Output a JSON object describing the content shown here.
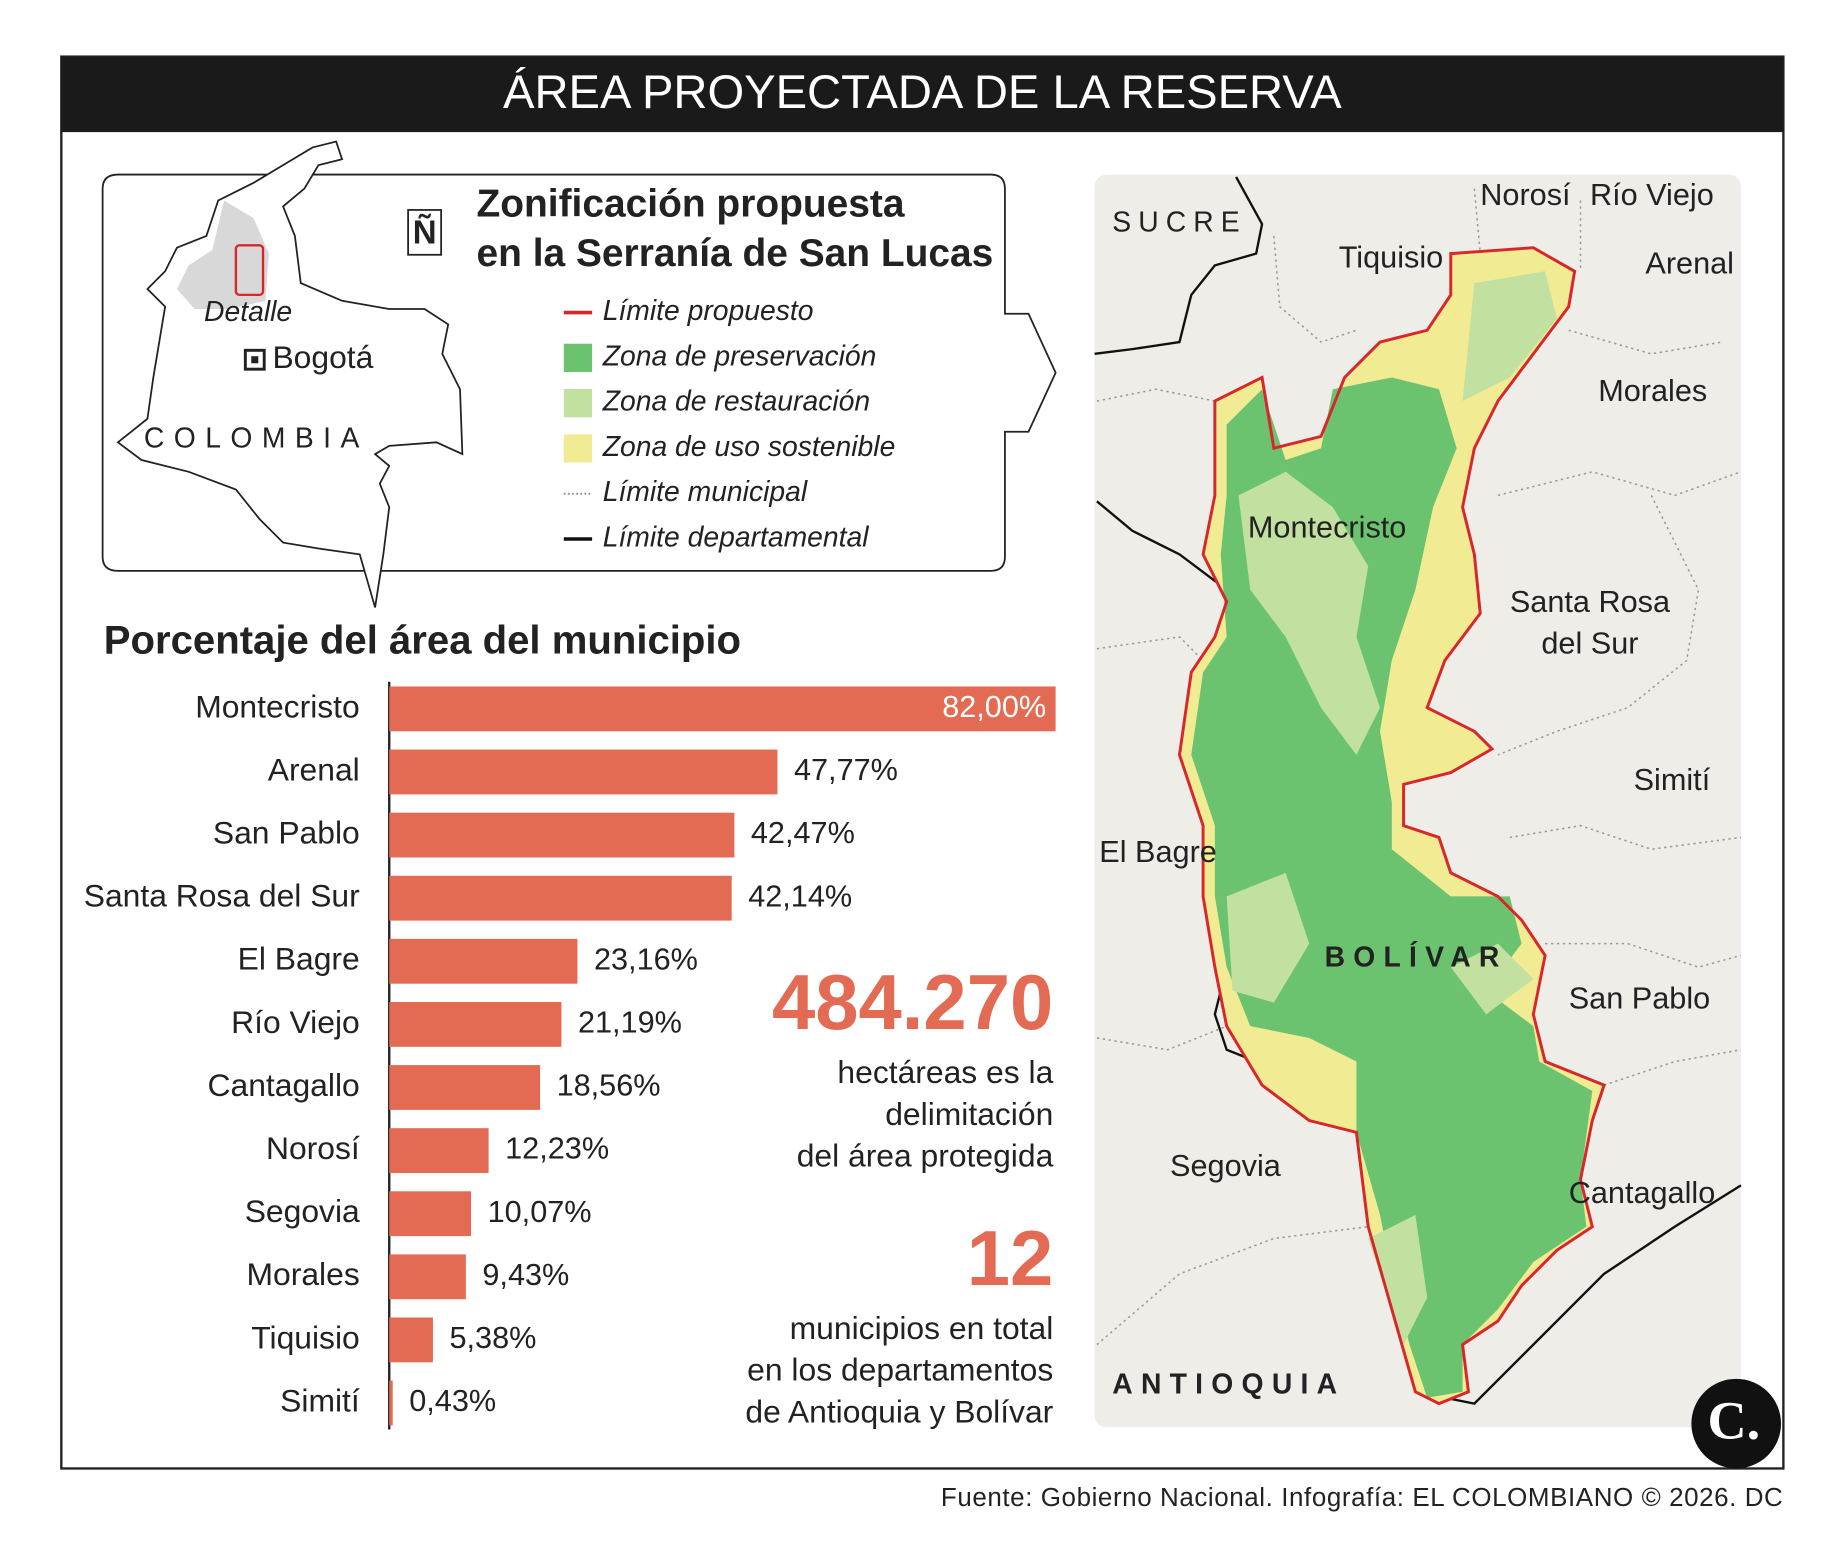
{
  "header": {
    "title": "ÁREA PROYECTADA DE LA RESERVA"
  },
  "inset": {
    "title_lines": [
      "Zonificación propuesta",
      "en la Serranía de San Lucas"
    ],
    "compass": "Ñ",
    "locator_labels": [
      "Detalle",
      "Bogotá",
      "COLOMBIA"
    ],
    "legend": [
      {
        "label": "Límite propuesto",
        "color": "#d9262a"
      },
      {
        "label": "Zona de preservación",
        "color": "#6cc36f"
      },
      {
        "label": "Zona de restauración",
        "color": "#c2e0a0"
      },
      {
        "label": "Zona de uso sostenible",
        "color": "#f1ec94"
      },
      {
        "label": "Límite municipal",
        "color": "#8a8a8a"
      },
      {
        "label": "Límite departamental",
        "color": "#111111"
      }
    ]
  },
  "chart_data": {
    "type": "bar",
    "orientation": "horizontal",
    "title": "Porcentaje del área del municipio",
    "categories": [
      "Montecristo",
      "Arenal",
      "San Pablo",
      "Santa Rosa del Sur",
      "El Bagre",
      "Río Viejo",
      "Cantagallo",
      "Norosí",
      "Segovia",
      "Morales",
      "Tiquisio",
      "Simití"
    ],
    "values": [
      82.0,
      47.77,
      42.47,
      42.14,
      23.16,
      21.19,
      18.56,
      12.23,
      10.07,
      9.43,
      5.38,
      0.43
    ],
    "value_labels": [
      "82,00%",
      "47,77%",
      "42,47%",
      "42,14%",
      "23,16%",
      "21,19%",
      "18,56%",
      "12,23%",
      "10,07%",
      "9,43%",
      "5,38%",
      "0,43%"
    ],
    "color": "#e36b53"
  },
  "highlights": [
    {
      "value": "484.270",
      "lines": [
        "hectáreas es la",
        "delimitación",
        "del área protegida"
      ]
    },
    {
      "value": "12",
      "lines": [
        "municipios en total",
        "en los departamentos",
        "de Antioquia y Bolívar"
      ]
    }
  ],
  "map": {
    "labels": [
      "SUCRE",
      "Norosí",
      "Río Viejo",
      "Tiquisio",
      "Arenal",
      "Morales",
      "Montecristo",
      "Santa Rosa",
      "del Sur",
      "Simití",
      "El Bagre",
      "BOLÍVAR",
      "San Pablo",
      "Segovia",
      "Cantagallo",
      "ANTIOQUIA"
    ]
  },
  "source": "Fuente: Gobierno Nacional. Infografía: EL COLOMBIANO © 2026. DC"
}
